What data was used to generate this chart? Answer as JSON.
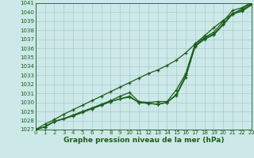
{
  "x": [
    0,
    1,
    2,
    3,
    4,
    5,
    6,
    7,
    8,
    9,
    10,
    11,
    12,
    13,
    14,
    15,
    16,
    17,
    18,
    19,
    20,
    21,
    22,
    23
  ],
  "line_straight": [
    1027.0,
    1027.6,
    1028.1,
    1028.7,
    1029.2,
    1029.7,
    1030.2,
    1030.7,
    1031.2,
    1031.7,
    1032.2,
    1032.7,
    1033.2,
    1033.6,
    1034.1,
    1034.7,
    1035.5,
    1036.5,
    1037.4,
    1038.3,
    1039.1,
    1039.8,
    1040.4,
    1041.0
  ],
  "line_main": [
    1027.0,
    1027.3,
    1027.9,
    1028.2,
    1028.6,
    1029.0,
    1029.4,
    1029.8,
    1030.2,
    1030.7,
    1031.1,
    1030.1,
    1030.0,
    1030.1,
    1030.1,
    1031.4,
    1033.2,
    1036.5,
    1037.2,
    1037.8,
    1039.0,
    1040.2,
    1040.5,
    1041.1
  ],
  "line_mid1": [
    1027.0,
    1027.3,
    1027.9,
    1028.2,
    1028.6,
    1029.0,
    1029.3,
    1029.7,
    1030.1,
    1030.4,
    1030.7,
    1030.0,
    1029.9,
    1029.8,
    1030.0,
    1030.9,
    1033.0,
    1036.3,
    1037.1,
    1037.6,
    1038.7,
    1039.9,
    1040.2,
    1040.9
  ],
  "line_mid2": [
    1027.0,
    1027.3,
    1027.9,
    1028.2,
    1028.5,
    1028.9,
    1029.3,
    1029.7,
    1030.1,
    1030.4,
    1030.6,
    1030.0,
    1029.9,
    1029.8,
    1030.0,
    1030.8,
    1032.8,
    1036.2,
    1037.0,
    1037.5,
    1038.6,
    1039.8,
    1040.1,
    1040.8
  ],
  "bg_color": "#cce8e8",
  "grid_color": "#aacccc",
  "line_color": "#1a5e1a",
  "tick_label_color": "#1a5e1a",
  "xlabel": "Graphe pression niveau de la mer (hPa)",
  "ylim_min": 1027,
  "ylim_max": 1041,
  "xlim_min": 0,
  "xlim_max": 23,
  "yticks": [
    1027,
    1028,
    1029,
    1030,
    1031,
    1032,
    1033,
    1034,
    1035,
    1036,
    1037,
    1038,
    1039,
    1040,
    1041
  ],
  "xticks": [
    0,
    1,
    2,
    3,
    4,
    5,
    6,
    7,
    8,
    9,
    10,
    11,
    12,
    13,
    14,
    15,
    16,
    17,
    18,
    19,
    20,
    21,
    22,
    23
  ],
  "xlabel_fontsize": 6.5,
  "tick_fontsize": 5.0,
  "marker": "+",
  "linewidth": 0.9,
  "markersize": 3.0,
  "markeredgewidth": 0.9
}
